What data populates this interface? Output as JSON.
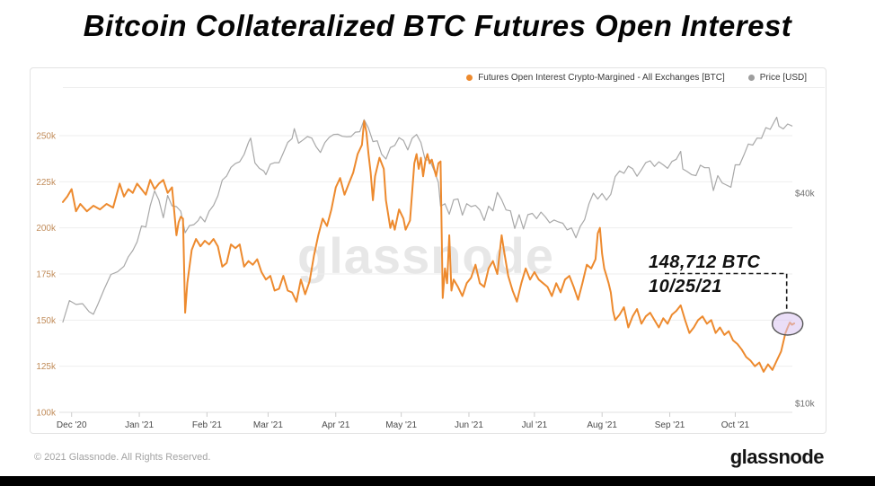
{
  "page": {
    "title": "Bitcoin Collateralized BTC Futures Open Interest"
  },
  "legend": [
    {
      "label": "Futures Open Interest Crypto-Margined - All Exchanges [BTC]",
      "color": "#ED8A2E"
    },
    {
      "label": "Price [USD]",
      "color": "#9e9e9e"
    }
  ],
  "watermark": "glassnode",
  "annotation": {
    "line1": "148,712 BTC",
    "line2": "10/25/21",
    "target_day": 333,
    "target_value": 148.7,
    "ellipse_fill": "rgba(217,194,240,0.55)",
    "ellipse_stroke": "#555555",
    "connector_color": "#1a1a1a"
  },
  "footer": {
    "copyright": "© 2021 Glassnode. All Rights Reserved.",
    "logo": "glassnode"
  },
  "chart_data": {
    "type": "line",
    "title": "Bitcoin Collateralized BTC Futures Open Interest",
    "grid": "horizontal",
    "legend_position": "top-right",
    "x_axis": {
      "unit": "days since 2020-11-27",
      "tick_days": [
        4,
        35,
        66,
        94,
        125,
        155,
        186,
        216,
        247,
        278,
        308
      ],
      "tick_labels": [
        "Dec '20",
        "Jan '21",
        "Feb '21",
        "Mar '21",
        "Apr '21",
        "May '21",
        "Jun '21",
        "Jul '21",
        "Aug '21",
        "Sep '21",
        "Oct '21"
      ]
    },
    "y_axis_left": {
      "scale": "linear",
      "unit": "BTC (thousands)",
      "tick_values": [
        250,
        225,
        200,
        175,
        150,
        125,
        100
      ],
      "tick_labels": [
        "250k",
        "225k",
        "200k",
        "175k",
        "150k",
        "125k",
        "100k"
      ],
      "ylim": [
        100,
        260
      ]
    },
    "y_axis_right": {
      "scale": "log",
      "unit": "USD (thousands)",
      "tick_values": [
        40,
        10
      ],
      "tick_labels": [
        "$40k",
        "$10k"
      ]
    },
    "series": [
      {
        "name": "Futures Open Interest Crypto-Margined - All Exchanges [BTC]",
        "axis": "left",
        "color": "#ED8A2E",
        "width": 2,
        "days": [
          0,
          2,
          4,
          6,
          8,
          11,
          14,
          17,
          20,
          23,
          26,
          28,
          30,
          32,
          34,
          36,
          38,
          40,
          42,
          44,
          46,
          48,
          50,
          52,
          53,
          54,
          55,
          56,
          57,
          59,
          61,
          63,
          65,
          67,
          69,
          71,
          73,
          75,
          77,
          79,
          81,
          83,
          85,
          87,
          89,
          91,
          93,
          95,
          97,
          99,
          101,
          103,
          105,
          107,
          109,
          111,
          113,
          115,
          117,
          119,
          121,
          123,
          125,
          127,
          129,
          131,
          133,
          135,
          137,
          138,
          139,
          140,
          141,
          142,
          143,
          145,
          147,
          148,
          150,
          151,
          152,
          154,
          156,
          157,
          159,
          161,
          162,
          163,
          164,
          165,
          166,
          167,
          168,
          169,
          171,
          172,
          173,
          174,
          175,
          176,
          177,
          178,
          179,
          181,
          183,
          185,
          187,
          189,
          191,
          193,
          195,
          197,
          199,
          201,
          202,
          204,
          206,
          208,
          210,
          212,
          214,
          216,
          218,
          220,
          222,
          224,
          226,
          228,
          230,
          232,
          234,
          236,
          238,
          240,
          242,
          244,
          245,
          246,
          247,
          248,
          249,
          250,
          251,
          252,
          253,
          255,
          257,
          259,
          261,
          263,
          265,
          267,
          269,
          271,
          273,
          275,
          277,
          279,
          281,
          283,
          285,
          287,
          289,
          291,
          293,
          295,
          297,
          299,
          301,
          303,
          305,
          307,
          309,
          311,
          313,
          315,
          317,
          319,
          321,
          323,
          325,
          327,
          329,
          330,
          331,
          332,
          333,
          334,
          335
        ],
        "values": [
          214,
          217,
          221,
          209,
          213,
          209,
          212,
          210,
          213,
          211,
          224,
          217,
          221,
          219,
          224,
          221,
          218,
          226,
          221,
          224,
          226,
          219,
          222,
          196,
          203,
          206,
          205,
          154,
          170,
          188,
          194,
          190,
          193,
          191,
          194,
          190,
          179,
          181,
          191,
          189,
          191,
          179,
          182,
          180,
          183,
          176,
          172,
          174,
          166,
          167,
          174,
          166,
          165,
          160,
          172,
          164,
          171,
          185,
          196,
          205,
          201,
          210,
          222,
          227,
          218,
          224,
          230,
          240,
          245,
          258,
          252,
          240,
          230,
          215,
          228,
          238,
          232,
          215,
          200,
          204,
          199,
          210,
          205,
          199,
          204,
          235,
          240,
          232,
          238,
          228,
          236,
          240,
          235,
          237,
          228,
          235,
          236,
          162,
          178,
          170,
          196,
          166,
          172,
          168,
          163,
          170,
          173,
          180,
          170,
          168,
          178,
          182,
          175,
          196,
          188,
          174,
          166,
          160,
          170,
          178,
          172,
          176,
          172,
          170,
          168,
          163,
          170,
          165,
          172,
          174,
          168,
          161,
          170,
          180,
          178,
          183,
          197,
          200,
          186,
          178,
          174,
          170,
          165,
          155,
          150,
          153,
          157,
          146,
          152,
          156,
          148,
          152,
          154,
          150,
          146,
          151,
          148,
          153,
          155,
          158,
          150,
          143,
          146,
          150,
          152,
          148,
          150,
          143,
          146,
          142,
          144,
          139,
          137,
          134,
          130,
          128,
          125,
          127,
          122,
          126,
          123,
          128,
          133,
          138,
          143,
          146,
          148.7,
          147.5,
          148.2
        ]
      },
      {
        "name": "Price [USD]",
        "axis": "right",
        "color": "#a8a8a8",
        "width": 1.2,
        "days": [
          0,
          3,
          6,
          9,
          12,
          14,
          16,
          19,
          22,
          25,
          28,
          30,
          32,
          34,
          36,
          38,
          40,
          42,
          44,
          46,
          48,
          50,
          52,
          54,
          56,
          58,
          60,
          62,
          63,
          65,
          67,
          69,
          71,
          73,
          75,
          77,
          79,
          81,
          83,
          85,
          86,
          88,
          90,
          92,
          93,
          95,
          97,
          99,
          101,
          103,
          105,
          106,
          108,
          110,
          112,
          114,
          116,
          118,
          120,
          122,
          124,
          126,
          128,
          130,
          132,
          134,
          136,
          138,
          140,
          142,
          144,
          146,
          148,
          150,
          152,
          154,
          156,
          158,
          160,
          162,
          164,
          166,
          168,
          170,
          172,
          173,
          175,
          177,
          179,
          181,
          183,
          185,
          187,
          189,
          191,
          193,
          195,
          197,
          199,
          201,
          203,
          205,
          207,
          209,
          211,
          213,
          215,
          217,
          219,
          221,
          223,
          225,
          227,
          229,
          231,
          233,
          235,
          237,
          239,
          241,
          243,
          245,
          247,
          249,
          251,
          253,
          255,
          257,
          259,
          261,
          263,
          265,
          267,
          269,
          271,
          273,
          275,
          277,
          279,
          281,
          283,
          284,
          286,
          288,
          290,
          292,
          294,
          296,
          298,
          300,
          302,
          304,
          306,
          308,
          310,
          312,
          314,
          316,
          318,
          320,
          322,
          324,
          326,
          327,
          328,
          330,
          332,
          334
        ],
        "values": [
          17.1,
          19.7,
          19.2,
          19.3,
          18.3,
          18.0,
          19.2,
          21.3,
          23.4,
          23.8,
          24.7,
          26.3,
          27.4,
          29.0,
          32.2,
          32.0,
          36.8,
          40.6,
          38.2,
          34.0,
          39.4,
          36.8,
          36.6,
          35.5,
          30.8,
          32.3,
          32.5,
          33.4,
          34.3,
          33.1,
          35.5,
          36.9,
          39.3,
          43.6,
          44.8,
          47.4,
          48.6,
          49.2,
          51.6,
          55.9,
          57.5,
          48.8,
          47.1,
          46.3,
          45.2,
          48.4,
          48.9,
          48.9,
          52.2,
          55.9,
          57.3,
          61.2,
          55.6,
          56.8,
          58.1,
          57.5,
          54.3,
          52.3,
          55.8,
          57.8,
          58.9,
          59.0,
          58.2,
          58.0,
          58.1,
          59.8,
          60.0,
          64.9,
          61.4,
          56.2,
          56.5,
          51.7,
          50.1,
          54.0,
          54.8,
          57.7,
          56.6,
          53.2,
          57.4,
          58.9,
          55.9,
          49.7,
          49.9,
          46.5,
          42.9,
          36.7,
          37.3,
          34.8,
          38.3,
          38.5,
          34.6,
          37.3,
          36.6,
          36.9,
          35.8,
          33.4,
          36.7,
          35.6,
          40.2,
          38.3,
          35.8,
          35.6,
          31.7,
          34.7,
          31.6,
          34.7,
          35.0,
          33.8,
          35.3,
          34.2,
          32.9,
          33.5,
          33.1,
          32.8,
          31.4,
          31.8,
          29.8,
          32.1,
          33.6,
          37.3,
          40.0,
          38.5,
          39.9,
          38.2,
          39.7,
          44.6,
          46.3,
          45.6,
          47.8,
          47.0,
          44.7,
          46.7,
          48.9,
          49.5,
          47.7,
          49.2,
          48.2,
          47.1,
          49.3,
          50.0,
          52.7,
          46.9,
          46.1,
          45.2,
          44.9,
          48.1,
          47.3,
          47.3,
          40.7,
          44.9,
          42.8,
          42.2,
          41.6,
          48.2,
          48.2,
          51.5,
          55.3,
          54.9,
          57.5,
          57.4,
          61.6,
          60.9,
          64.3,
          66.0,
          62.2,
          61.1,
          63.1,
          62.3
        ]
      }
    ]
  }
}
